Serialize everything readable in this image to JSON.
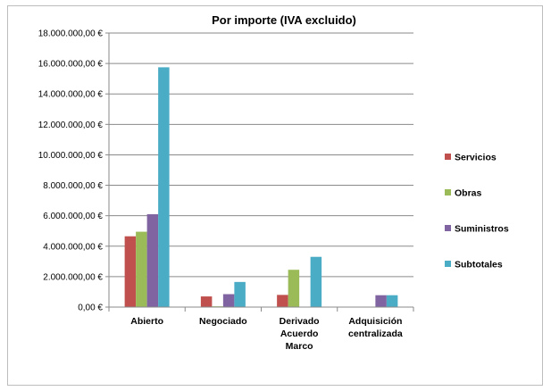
{
  "chart_data": {
    "type": "bar",
    "title": "Por importe (IVA excluido)",
    "xlabel": "",
    "ylabel": "",
    "categories": [
      [
        "Abierto"
      ],
      [
        "Negociado"
      ],
      [
        "Derivado",
        "Acuerdo",
        "Marco"
      ],
      [
        "Adquisición",
        "centralizada"
      ]
    ],
    "series": [
      {
        "name": "Servicios",
        "color": "#c0504d",
        "values": [
          4650000,
          700000,
          800000,
          0
        ]
      },
      {
        "name": "Obras",
        "color": "#9bbb59",
        "values": [
          4950000,
          50000,
          2450000,
          0
        ]
      },
      {
        "name": "Suministros",
        "color": "#8064a2",
        "values": [
          6100000,
          850000,
          0,
          780000
        ]
      },
      {
        "name": "Subtotales",
        "color": "#4bacc6",
        "values": [
          15750000,
          1650000,
          3300000,
          780000
        ]
      }
    ],
    "ylim": [
      0,
      18000000
    ],
    "yticks": [
      0,
      2000000,
      4000000,
      6000000,
      8000000,
      10000000,
      12000000,
      14000000,
      16000000,
      18000000
    ],
    "ytick_labels": [
      "0,00 €",
      "2.000.000,00 €",
      "4.000.000,00 €",
      "6.000.000,00 €",
      "8.000.000,00 €",
      "10.000.000,00 €",
      "12.000.000,00 €",
      "14.000.000,00 €",
      "16.000.000,00 €",
      "18.000.000,00 €"
    ],
    "grid": true,
    "legend_position": "right"
  }
}
